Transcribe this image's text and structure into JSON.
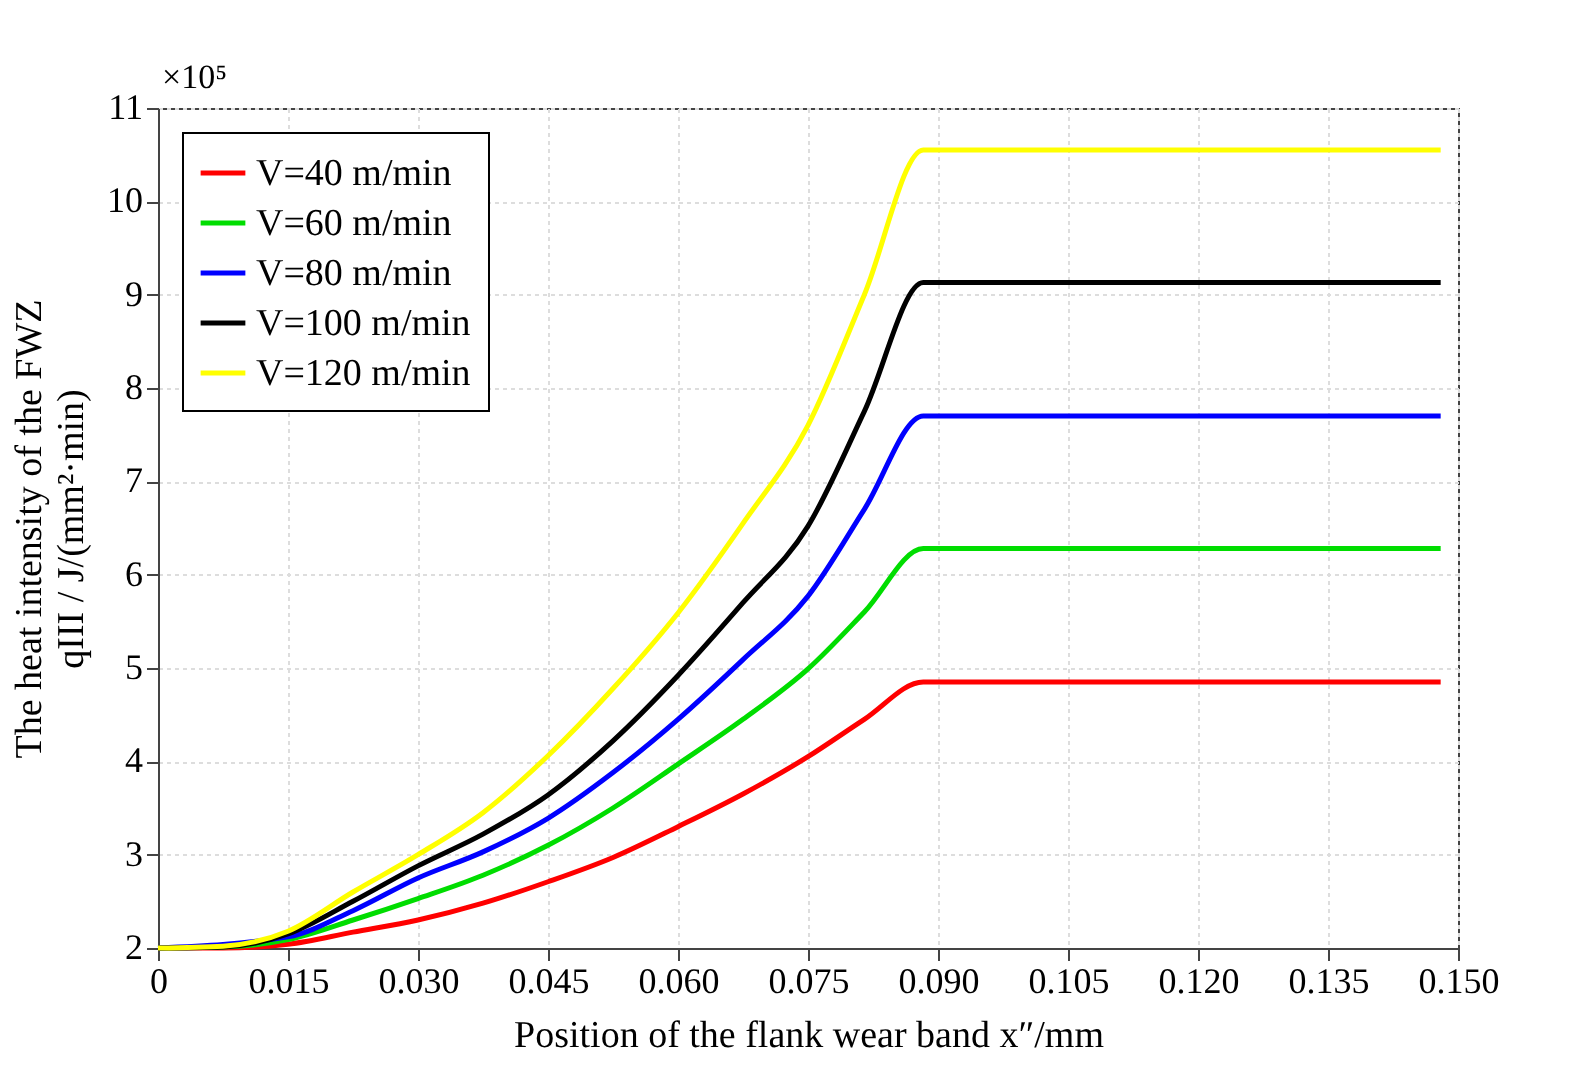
{
  "chart_data": {
    "type": "line",
    "xlabel": "Position of the flank wear band x″/mm",
    "ylabel": "The heat intensity of the FWZ\nqIII / J/(mm²·min)",
    "annotations": [
      "×10⁵"
    ],
    "x": [
      0,
      0.0075,
      0.015,
      0.0225,
      0.03,
      0.0375,
      0.045,
      0.0525,
      0.06,
      0.0675,
      0.075,
      0.0815,
      0.0883,
      0.148
    ],
    "series": [
      {
        "name": "V=40 m/min",
        "color": "#ff0000",
        "values": [
          2.0,
          2.0,
          2.04,
          2.17,
          2.3,
          2.48,
          2.71,
          2.97,
          3.3,
          3.65,
          4.05,
          4.45,
          4.85,
          4.85
        ]
      },
      {
        "name": "V=60 m/min",
        "color": "#00dd00",
        "values": [
          2.0,
          2.01,
          2.09,
          2.3,
          2.53,
          2.78,
          3.1,
          3.5,
          3.97,
          4.45,
          4.99,
          5.6,
          6.28,
          6.28
        ]
      },
      {
        "name": "V=80 m/min",
        "color": "#0000ff",
        "values": [
          2.0,
          null,
          2.12,
          2.4,
          2.75,
          3.03,
          3.39,
          3.88,
          4.45,
          5.09,
          5.77,
          6.7,
          7.7,
          7.7
        ]
      },
      {
        "name": "V=100 m/min",
        "color": "#000000",
        "values": [
          2.0,
          2.01,
          2.15,
          2.5,
          2.88,
          3.22,
          3.64,
          4.22,
          4.92,
          5.7,
          6.52,
          7.75,
          9.13,
          9.13
        ]
      },
      {
        "name": "V=120 m/min",
        "color": "#ffff00",
        "values": [
          2.0,
          2.02,
          2.18,
          2.6,
          3.0,
          3.45,
          4.06,
          4.78,
          5.59,
          6.55,
          7.6,
          9.0,
          10.55,
          10.55
        ]
      }
    ],
    "xlim": [
      0,
      0.15
    ],
    "xticks": [
      0,
      0.015,
      {
        "value": 0.03,
        "label": "0.030"
      },
      0.045,
      {
        "value": 0.06,
        "label": "0.060"
      },
      0.075,
      {
        "value": 0.09,
        "label": "0.090"
      },
      0.105,
      {
        "value": 0.12,
        "label": "0.120"
      },
      0.135,
      {
        "value": 0.15,
        "label": "0.150"
      }
    ],
    "ylim": [
      2,
      11
    ],
    "yticks": [
      2,
      3,
      4,
      5,
      6,
      7,
      8,
      9,
      10,
      11
    ],
    "grid": true,
    "legend": "top left",
    "line_style": "solid",
    "marker": "none"
  }
}
